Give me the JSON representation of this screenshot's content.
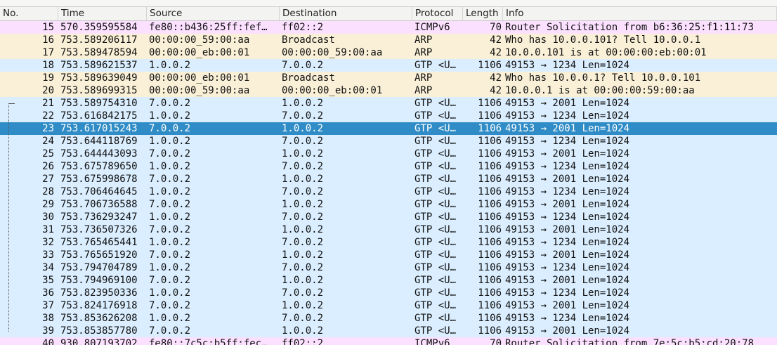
{
  "table": {
    "columns": [
      "No.",
      "Time",
      "Source",
      "Destination",
      "Protocol",
      "Length",
      "Info"
    ],
    "rows": [
      {
        "color": "#fce0ff",
        "cells": [
          "15",
          "570.359595584",
          "fe80::b436:25ff:fef…",
          "ff02::2",
          "ICMPv6",
          "70",
          "Router Solicitation from b6:36:25:f1:11:73"
        ]
      },
      {
        "color": "#faf0d7",
        "cells": [
          "16",
          "753.589206117",
          "00:00:00_59:00:aa",
          "Broadcast",
          "ARP",
          "42",
          "Who has 10.0.0.101? Tell 10.0.0.1"
        ]
      },
      {
        "color": "#faf0d7",
        "cells": [
          "17",
          "753.589478594",
          "00:00:00_eb:00:01",
          "00:00:00_59:00:aa",
          "ARP",
          "42",
          "10.0.0.101 is at 00:00:00:eb:00:01"
        ]
      },
      {
        "color": "#daeeff",
        "cells": [
          "18",
          "753.589621537",
          "1.0.0.2",
          "7.0.0.2",
          "GTP <U…",
          "1106",
          "49153 → 1234 Len=1024"
        ]
      },
      {
        "color": "#faf0d7",
        "cells": [
          "19",
          "753.589639049",
          "00:00:00_eb:00:01",
          "Broadcast",
          "ARP",
          "42",
          "Who has 10.0.0.1? Tell 10.0.0.101"
        ]
      },
      {
        "color": "#faf0d7",
        "cells": [
          "20",
          "753.589699315",
          "00:00:00_59:00:aa",
          "00:00:00_eb:00:01",
          "ARP",
          "42",
          "10.0.0.1 is at 00:00:00:59:00:aa"
        ]
      },
      {
        "color": "#daeeff",
        "cells": [
          "21",
          "753.589754310",
          "7.0.0.2",
          "1.0.0.2",
          "GTP <U…",
          "1106",
          "49153 → 2001 Len=1024"
        ]
      },
      {
        "color": "#daeeff",
        "cells": [
          "22",
          "753.616842175",
          "1.0.0.2",
          "7.0.0.2",
          "GTP <U…",
          "1106",
          "49153 → 1234 Len=1024"
        ]
      },
      {
        "color": "#308cc6",
        "selected": true,
        "cells": [
          "23",
          "753.617015243",
          "7.0.0.2",
          "1.0.0.2",
          "GTP <U…",
          "1106",
          "49153 → 2001 Len=1024"
        ]
      },
      {
        "color": "#daeeff",
        "cells": [
          "24",
          "753.644118769",
          "1.0.0.2",
          "7.0.0.2",
          "GTP <U…",
          "1106",
          "49153 → 1234 Len=1024"
        ]
      },
      {
        "color": "#daeeff",
        "cells": [
          "25",
          "753.644443093",
          "7.0.0.2",
          "1.0.0.2",
          "GTP <U…",
          "1106",
          "49153 → 2001 Len=1024"
        ]
      },
      {
        "color": "#daeeff",
        "cells": [
          "26",
          "753.675789650",
          "1.0.0.2",
          "7.0.0.2",
          "GTP <U…",
          "1106",
          "49153 → 1234 Len=1024"
        ]
      },
      {
        "color": "#daeeff",
        "cells": [
          "27",
          "753.675998678",
          "7.0.0.2",
          "1.0.0.2",
          "GTP <U…",
          "1106",
          "49153 → 2001 Len=1024"
        ]
      },
      {
        "color": "#daeeff",
        "cells": [
          "28",
          "753.706464645",
          "1.0.0.2",
          "7.0.0.2",
          "GTP <U…",
          "1106",
          "49153 → 1234 Len=1024"
        ]
      },
      {
        "color": "#daeeff",
        "cells": [
          "29",
          "753.706736588",
          "7.0.0.2",
          "1.0.0.2",
          "GTP <U…",
          "1106",
          "49153 → 2001 Len=1024"
        ]
      },
      {
        "color": "#daeeff",
        "cells": [
          "30",
          "753.736293247",
          "1.0.0.2",
          "7.0.0.2",
          "GTP <U…",
          "1106",
          "49153 → 1234 Len=1024"
        ]
      },
      {
        "color": "#daeeff",
        "cells": [
          "31",
          "753.736507326",
          "7.0.0.2",
          "1.0.0.2",
          "GTP <U…",
          "1106",
          "49153 → 2001 Len=1024"
        ]
      },
      {
        "color": "#daeeff",
        "cells": [
          "32",
          "753.765465441",
          "1.0.0.2",
          "7.0.0.2",
          "GTP <U…",
          "1106",
          "49153 → 1234 Len=1024"
        ]
      },
      {
        "color": "#daeeff",
        "cells": [
          "33",
          "753.765651920",
          "7.0.0.2",
          "1.0.0.2",
          "GTP <U…",
          "1106",
          "49153 → 2001 Len=1024"
        ]
      },
      {
        "color": "#daeeff",
        "cells": [
          "34",
          "753.794704789",
          "1.0.0.2",
          "7.0.0.2",
          "GTP <U…",
          "1106",
          "49153 → 1234 Len=1024"
        ]
      },
      {
        "color": "#daeeff",
        "cells": [
          "35",
          "753.794969100",
          "7.0.0.2",
          "1.0.0.2",
          "GTP <U…",
          "1106",
          "49153 → 2001 Len=1024"
        ]
      },
      {
        "color": "#daeeff",
        "cells": [
          "36",
          "753.823950336",
          "1.0.0.2",
          "7.0.0.2",
          "GTP <U…",
          "1106",
          "49153 → 1234 Len=1024"
        ]
      },
      {
        "color": "#daeeff",
        "cells": [
          "37",
          "753.824176918",
          "7.0.0.2",
          "1.0.0.2",
          "GTP <U…",
          "1106",
          "49153 → 2001 Len=1024"
        ]
      },
      {
        "color": "#daeeff",
        "cells": [
          "38",
          "753.853626208",
          "1.0.0.2",
          "7.0.0.2",
          "GTP <U…",
          "1106",
          "49153 → 1234 Len=1024"
        ]
      },
      {
        "color": "#daeeff",
        "cells": [
          "39",
          "753.853857780",
          "7.0.0.2",
          "1.0.0.2",
          "GTP <U…",
          "1106",
          "49153 → 2001 Len=1024"
        ]
      },
      {
        "color": "#fce0ff",
        "cells": [
          "40",
          "930.807193702",
          "fe80::7c5c:b5ff:fec…",
          "ff02::2",
          "ICMPv6",
          "70",
          "Router Solicitation from 7e:5c:b5:cd:20:78"
        ]
      }
    ]
  }
}
